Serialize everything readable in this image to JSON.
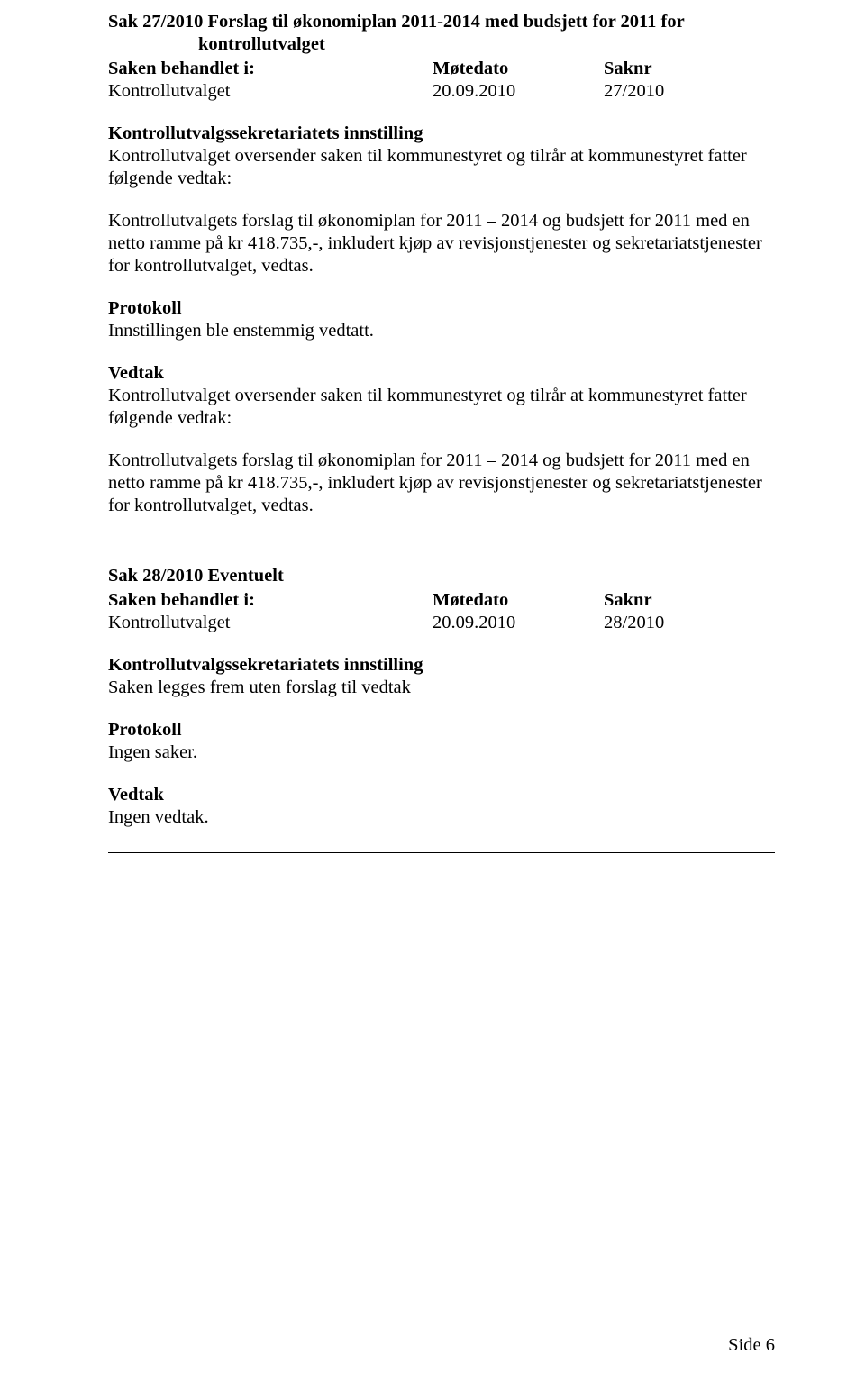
{
  "sak27": {
    "title_l1": "Sak 27/2010 Forslag til økonomiplan 2011-2014 med budsjett for 2011 for",
    "title_l2": "kontrollutvalget",
    "meta": {
      "h1": "Saken behandlet i:",
      "h2": "Møtedato",
      "h3": "Saknr",
      "v1": "Kontrollutvalget",
      "v2": "20.09.2010",
      "v3": "27/2010"
    },
    "innstilling_hdr": "Kontrollutvalgssekretariatets innstilling",
    "innstilling_p1": "Kontrollutvalget oversender saken til kommunestyret og tilrår at kommunestyret fatter følgende vedtak:",
    "innstilling_p2": "Kontrollutvalgets forslag til økonomiplan for 2011 – 2014 og budsjett for 2011 med en netto ramme på kr 418.735,-, inkludert kjøp av revisjonstjenester og sekretariatstjenester for kontrollutvalget, vedtas.",
    "protokoll_hdr": "Protokoll",
    "protokoll_body": "Innstillingen ble enstemmig vedtatt.",
    "vedtak_hdr": "Vedtak",
    "vedtak_p1": "Kontrollutvalget oversender saken til kommunestyret og tilrår at kommunestyret fatter følgende vedtak:",
    "vedtak_p2": "Kontrollutvalgets forslag til økonomiplan for 2011 – 2014 og budsjett for 2011 med en netto ramme på kr 418.735,-, inkludert kjøp av revisjonstjenester og sekretariatstjenester for kontrollutvalget, vedtas."
  },
  "sak28": {
    "title": "Sak 28/2010 Eventuelt",
    "meta": {
      "h1": "Saken behandlet i:",
      "h2": "Møtedato",
      "h3": "Saknr",
      "v1": "Kontrollutvalget",
      "v2": "20.09.2010",
      "v3": "28/2010"
    },
    "innstilling_hdr": "Kontrollutvalgssekretariatets innstilling",
    "innstilling_body": "Saken legges frem uten forslag til vedtak",
    "protokoll_hdr": "Protokoll",
    "protokoll_body": "Ingen saker.",
    "vedtak_hdr": "Vedtak",
    "vedtak_body": "Ingen vedtak."
  },
  "footer": "Side 6"
}
